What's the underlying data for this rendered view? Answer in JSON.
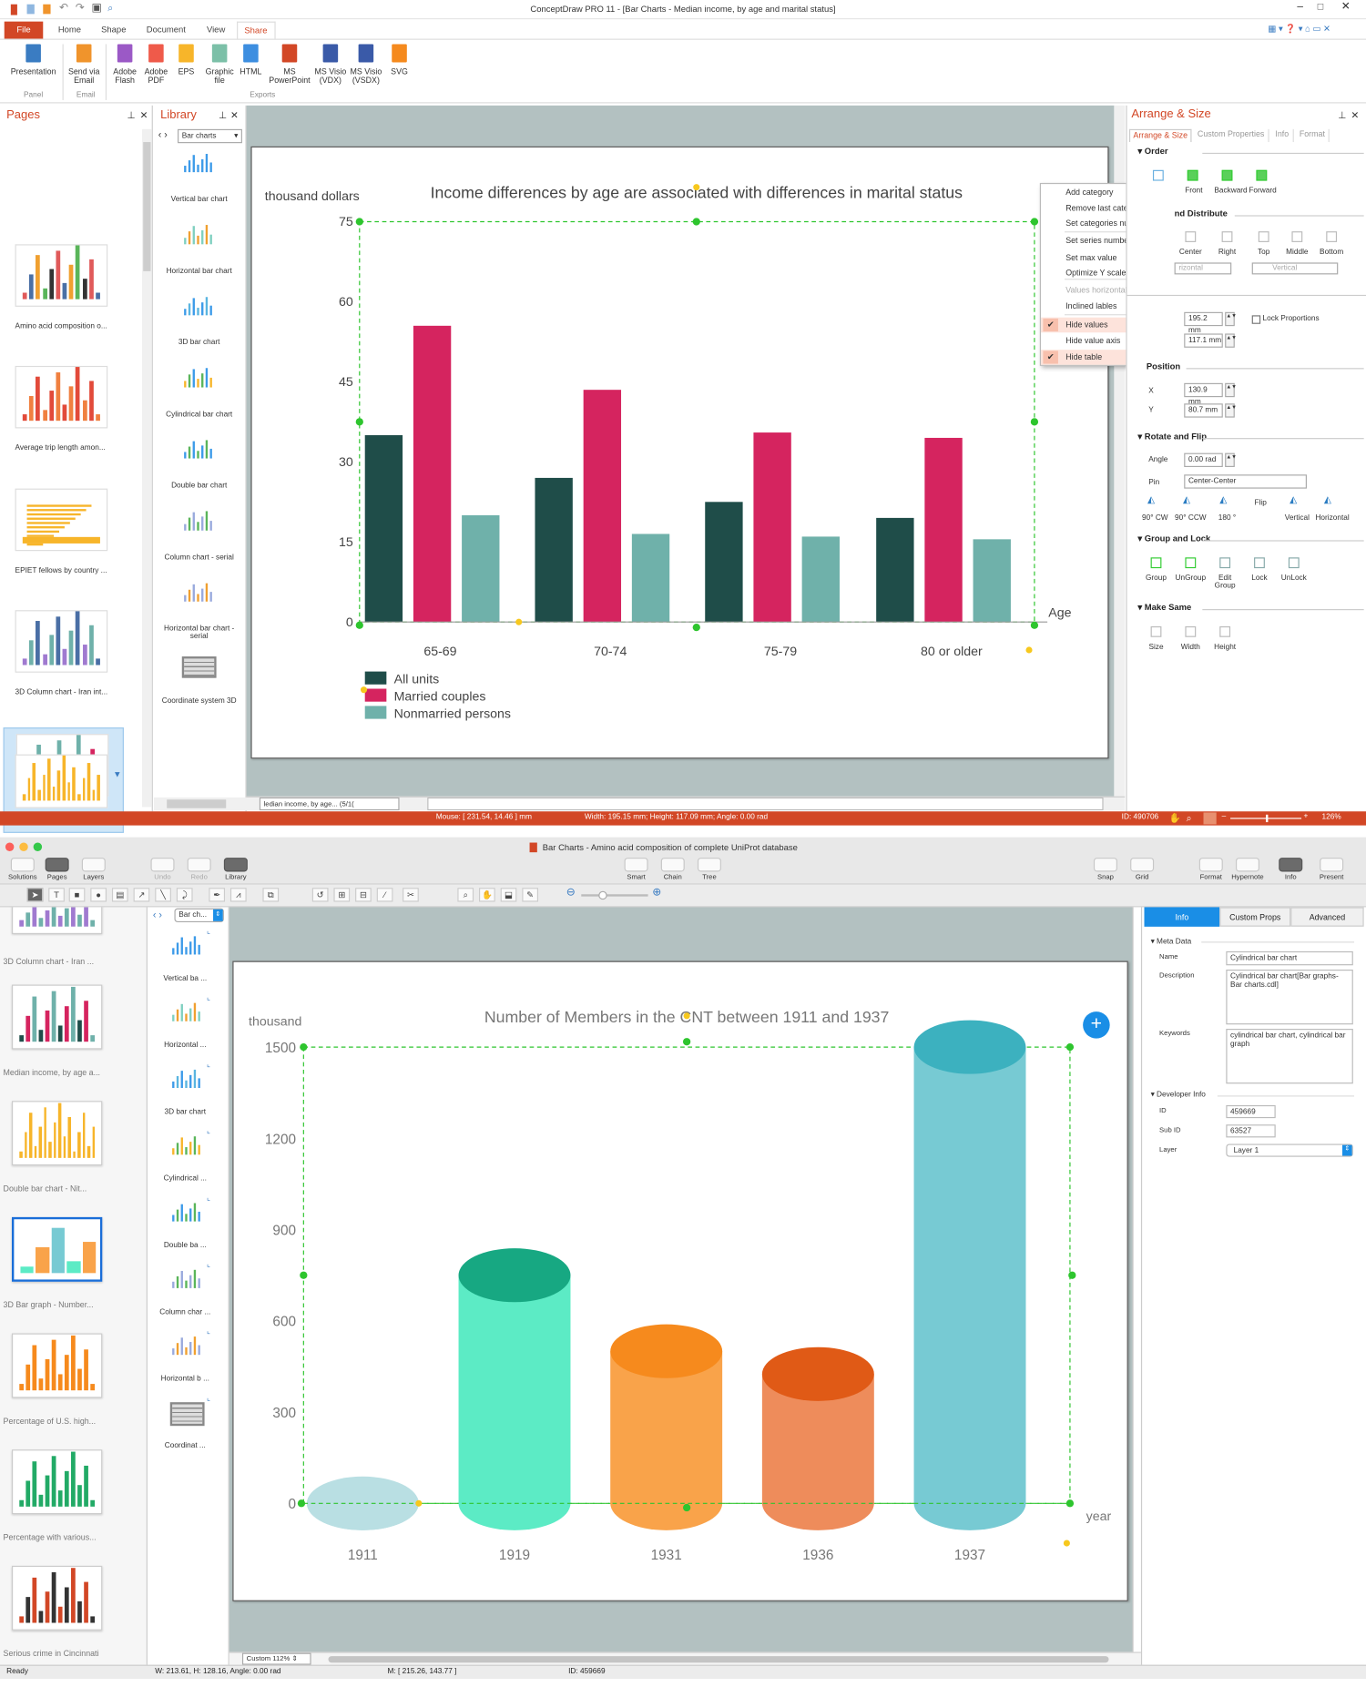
{
  "top_window": {
    "title": "ConceptDraw PRO 11 - [Bar Charts - Median income, by age and marital status]",
    "menu_tabs": [
      "File",
      "Home",
      "Shape",
      "Document",
      "View",
      "Share"
    ],
    "active_tab": "Share",
    "ribbon": {
      "buttons": [
        {
          "label": "Presentation",
          "icon": "presentation-icon",
          "color": "#3a7cc2"
        },
        {
          "label": "Send via Email",
          "icon": "email-icon",
          "color": "#f0942c"
        },
        {
          "label": "Adobe Flash",
          "icon": "swf-file-icon",
          "color": "#9b59c6"
        },
        {
          "label": "Adobe PDF",
          "icon": "pdf-file-icon",
          "color": "#ef5a4a"
        },
        {
          "label": "EPS",
          "icon": "eps-file-icon",
          "color": "#f7b52a"
        },
        {
          "label": "Graphic file",
          "icon": "image-file-icon",
          "color": "#7cc0a8"
        },
        {
          "label": "HTML",
          "icon": "html-file-icon",
          "color": "#3d8ee0"
        },
        {
          "label": "MS PowerPoint",
          "icon": "powerpoint-icon",
          "color": "#d24726"
        },
        {
          "label": "MS Visio (VDX)",
          "icon": "visio-vdx-icon",
          "color": "#3a5aa8"
        },
        {
          "label": "MS Visio (VSDX)",
          "icon": "visio-vsdx-icon",
          "color": "#3a5aa8"
        },
        {
          "label": "SVG",
          "icon": "svg-file-icon",
          "color": "#f58a1e"
        }
      ],
      "groups": [
        "Panel",
        "Email",
        "Exports"
      ]
    },
    "pages_panel": {
      "title": "Pages",
      "items": [
        "Amino acid composition o...",
        "Average trip length amon...",
        "EPIET fellows by country ...",
        "3D Column chart - Iran int...",
        "Median income, by age a..."
      ],
      "selected": "Median income, by age a..."
    },
    "library_panel": {
      "title": "Library",
      "dropdown": "Bar charts",
      "items": [
        "Vertical bar chart",
        "Horizontal bar chart",
        "3D bar chart",
        "Cylindrical bar chart",
        "Double bar chart",
        "Column chart - serial",
        "Horizontal bar chart - serial",
        "Coordinate system 3D"
      ]
    },
    "page_tab": "ledian income, by age... (5/1(",
    "context_menu": {
      "items": [
        {
          "label": "Add category",
          "checked": false,
          "disabled": false
        },
        {
          "label": "Remove last category",
          "checked": false,
          "disabled": false
        },
        {
          "label": "Set categories number",
          "checked": false,
          "disabled": false
        },
        {
          "label": "Set series number",
          "checked": false,
          "disabled": false
        },
        {
          "label": "Set max value",
          "checked": false,
          "disabled": false
        },
        {
          "label": "Optimize Y scale",
          "checked": false,
          "disabled": false
        },
        {
          "label": "Values horizontal",
          "checked": false,
          "disabled": true
        },
        {
          "label": "Inclined lables",
          "checked": false,
          "disabled": false
        },
        {
          "label": "Hide values",
          "checked": true,
          "disabled": false
        },
        {
          "label": "Hide value axis",
          "checked": false,
          "disabled": false
        },
        {
          "label": "Hide table",
          "checked": true,
          "disabled": false
        }
      ],
      "check_mark": "✔"
    },
    "arrange_panel": {
      "title": "Arrange & Size",
      "tabs": [
        "Arrange & Size",
        "Custom Properties",
        "Info",
        "Format"
      ],
      "order": {
        "title": "Order",
        "buttons": [
          "Front",
          "Backward",
          "Forward"
        ]
      },
      "align": {
        "title": "nd Distribute",
        "buttons": [
          "Center",
          "Right",
          "Top",
          "Middle",
          "Bottom"
        ],
        "horizontal": "rizontal",
        "vertical": "Vertical"
      },
      "size": {
        "width": "195.2 mm",
        "height": "117.1 mm",
        "lock": "Lock Proportions",
        "lock_checked": false
      },
      "position": {
        "title": "Position",
        "x_label": "X",
        "x": "130.9 mm",
        "y_label": "Y",
        "y": "80.7 mm"
      },
      "rotate": {
        "title": "Rotate and Flip",
        "angle_label": "Angle",
        "angle": "0.00 rad",
        "pin_label": "Pin",
        "pin": "Center-Center",
        "buttons": [
          "90° CW",
          "90° CCW",
          "180 °",
          "Flip",
          "Vertical",
          "Horizontal"
        ]
      },
      "group": {
        "title": "Group and Lock",
        "buttons": [
          "Group",
          "UnGroup",
          "Edit Group",
          "Lock",
          "UnLock"
        ]
      },
      "make_same": {
        "title": "Make Same",
        "buttons": [
          "Size",
          "Width",
          "Height"
        ]
      }
    },
    "status": {
      "mouse": "Mouse: [ 231.54, 14.46 ] mm",
      "dims": "Width: 195.15 mm;  Height: 117.09 mm;  Angle: 0.00 rad",
      "id": "ID: 490706",
      "zoom": "126%",
      "zoom_level": 0.5
    }
  },
  "bottom_window": {
    "title": "Bar Charts - Amino acid composition of complete UniProt database",
    "toolbar": {
      "left": [
        "Solutions",
        "Pages",
        "Layers"
      ],
      "edit": [
        "Undo",
        "Redo",
        "Library"
      ],
      "center": [
        "Smart",
        "Chain",
        "Tree"
      ],
      "right1": [
        "Snap",
        "Grid"
      ],
      "right2": [
        "Format",
        "Hypernote",
        "Info",
        "Present"
      ]
    },
    "pages": [
      "3D Column chart - Iran ...",
      "Median income, by age a...",
      "Double bar chart - Nit...",
      "3D Bar graph - Number...",
      "Percentage of U.S. high...",
      "Percentage with various...",
      "Serious crime in Cincinnati"
    ],
    "selected_page": "3D Bar graph - Number...",
    "library": {
      "dropdown": "Bar ch...",
      "items": [
        "Vertical ba ...",
        "Horizontal ...",
        "3D bar chart",
        "Cylindrical ...",
        "Double ba ...",
        "Column char ...",
        "Horizontal b ...",
        "Coordinat ..."
      ]
    },
    "info_panel": {
      "tabs": [
        "Info",
        "Custom Props",
        "Advanced"
      ],
      "active_tab": "Info",
      "meta_title": "Meta Data",
      "name_label": "Name",
      "name": "Cylindrical bar chart",
      "description_label": "Description",
      "description": "Cylindrical bar chart[Bar graphs-Bar charts.cdl]",
      "keywords_label": "Keywords",
      "keywords": "cylindrical bar chart, cylindrical bar graph",
      "dev_title": "Developer Info",
      "id_label": "ID",
      "id": "459669",
      "subid_label": "Sub ID",
      "subid": "63527",
      "layer_label": "Layer",
      "layer": "Layer 1"
    },
    "zoom": "Custom 112%",
    "status": {
      "ready": "Ready",
      "dims": "W: 213.61,  H: 128.16,  Angle: 0.00 rad",
      "mouse": "M: [ 215.26, 143.77 ]",
      "id": "ID: 459669"
    }
  },
  "chart_data": [
    {
      "type": "bar",
      "title": "Income differences by age are associated with differences in marital status",
      "ylabel": "thousand dollars",
      "xlabel": "Age",
      "categories": [
        "65-69",
        "70-74",
        "75-79",
        "80 or older"
      ],
      "yticks": [
        0,
        15,
        30,
        45,
        60,
        75
      ],
      "ylim": [
        0,
        75
      ],
      "grid": false,
      "legend": "bottom-left",
      "series": [
        {
          "name": "All units",
          "color": "#1f4d49",
          "values": [
            35,
            27,
            22.5,
            19.5
          ]
        },
        {
          "name": "Married couples",
          "color": "#d5245f",
          "values": [
            55.5,
            43.5,
            35.5,
            34.5
          ]
        },
        {
          "name": "Nonmarried persons",
          "color": "#6fb1aa",
          "values": [
            20,
            16.5,
            16,
            15.5
          ]
        }
      ]
    },
    {
      "type": "bar",
      "title": "Number of Members in the CNT between 1911 and 1937",
      "ylabel": "thousand",
      "xlabel": "year",
      "categories": [
        "1911",
        "1919",
        "1931",
        "1936",
        "1937"
      ],
      "values": [
        0,
        750,
        500,
        425,
        1500
      ],
      "yticks": [
        0,
        300,
        600,
        900,
        1200,
        1500
      ],
      "ylim": [
        0,
        1500
      ],
      "grid": false,
      "colors": [
        {
          "body": "#b9dfe3",
          "top": "#b9dfe3"
        },
        {
          "body": "#5cebc5",
          "top": "#17a882"
        },
        {
          "body": "#f9a34a",
          "top": "#f68a1d"
        },
        {
          "body": "#ee8c5b",
          "top": "#e05a16"
        },
        {
          "body": "#77cad3",
          "top": "#3cb1bf"
        }
      ]
    }
  ]
}
